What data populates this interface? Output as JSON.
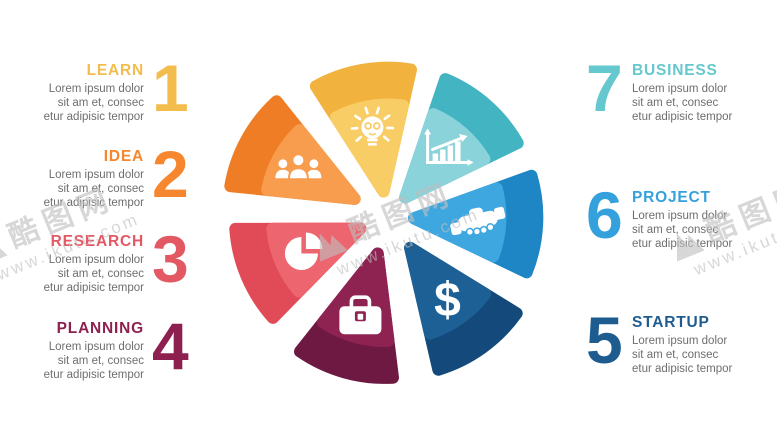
{
  "watermark": {
    "brand": "酷图网",
    "url": "www.ikutu.com"
  },
  "items": [
    {
      "number": "1",
      "title": "LEARN",
      "description": "Lorem ipsum dolor\nsit am et, consec\netur adipisic tempor",
      "accent": "#F3BD4D",
      "wedge": {
        "light": "#F9CD66",
        "dark": "#F1B23E"
      },
      "icon": "lightbulb-icon"
    },
    {
      "number": "2",
      "title": "IDEA",
      "description": "Lorem ipsum dolor\nsit am et, consec\netur adipisic tempor",
      "accent": "#F6872E",
      "wedge": {
        "light": "#F89C4E",
        "dark": "#EF7D26"
      },
      "icon": "team-icon"
    },
    {
      "number": "3",
      "title": "RESEARCH",
      "description": "Lorem ipsum dolor\nsit am et, consec\netur adipisic tempor",
      "accent": "#E25964",
      "wedge": {
        "light": "#ED656E",
        "dark": "#E04B57"
      },
      "icon": "pie-chart-icon"
    },
    {
      "number": "4",
      "title": "PLANNING",
      "description": "Lorem ipsum dolor\nsit am et, consec\netur adipisic tempor",
      "accent": "#8E2050",
      "wedge": {
        "light": "#8E2352",
        "dark": "#6D1941"
      },
      "icon": "briefcase-icon"
    },
    {
      "number": "5",
      "title": "STARTUP",
      "description": "Lorem ipsum dolor\nsit am et, consec\netur adipisic tempor",
      "accent": "#1E5C90",
      "wedge": {
        "light": "#1D6095",
        "dark": "#14497B"
      },
      "icon": "dollar-icon"
    },
    {
      "number": "6",
      "title": "PROJECT",
      "description": "Lorem ipsum dolor\nsit am et, consec\netur adipisic tempor",
      "accent": "#35A1DC",
      "wedge": {
        "light": "#3FA7E0",
        "dark": "#1E86C5"
      },
      "icon": "handshake-icon"
    },
    {
      "number": "7",
      "title": "BUSINESS",
      "description": "Lorem ipsum dolor\nsit am et, consec\netur adipisic tempor",
      "accent": "#64C8CE",
      "wedge": {
        "light": "#8AD3DA",
        "dark": "#43B4C1"
      },
      "icon": "growth-chart-icon"
    }
  ]
}
